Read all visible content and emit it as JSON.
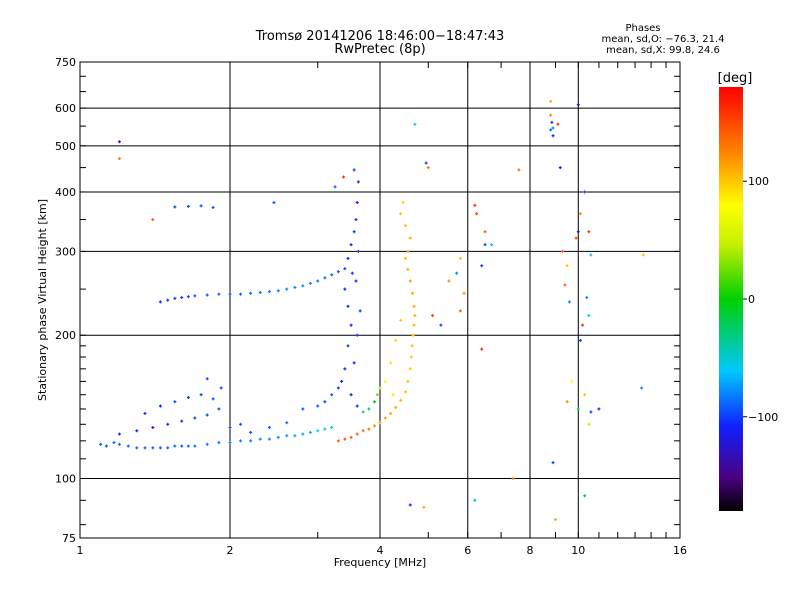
{
  "chart_data": {
    "type": "scatter",
    "title": "Tromsø 20141206 18:46:00−18:47:43",
    "subtitle": "RwPretec (8p)",
    "xlabel": "Frequency [MHz]",
    "ylabel": "Stationary phase Virtual Height [km]",
    "x_scale": "log",
    "y_scale": "log",
    "xlim": [
      1,
      16
    ],
    "ylim": [
      75,
      750
    ],
    "x_ticks": [
      1,
      2,
      4,
      6,
      8,
      10,
      16
    ],
    "x_tick_labels": [
      "1",
      "2",
      "4",
      "6",
      "8",
      "10",
      "16"
    ],
    "y_ticks": [
      75,
      100,
      200,
      300,
      400,
      500,
      600,
      750
    ],
    "y_tick_labels": [
      "75",
      "100",
      "200",
      "300",
      "400",
      "500",
      "600",
      "750"
    ],
    "grid": true,
    "phase_info": {
      "heading": "Phases",
      "line1": "mean, sd,O: −76.3, 21.4",
      "line2": "mean, sd,X:  99.8, 24.6"
    },
    "colorbar": {
      "label": "[deg]",
      "range": [
        -180,
        180
      ],
      "ticks": [
        100,
        0,
        -100
      ],
      "tick_labels": [
        "100",
        "0",
        "−100"
      ]
    },
    "series": [
      {
        "points": [
          [
            1.1,
            118,
            -95
          ],
          [
            1.13,
            117,
            -92
          ],
          [
            1.17,
            119,
            -90
          ],
          [
            1.2,
            118,
            -88
          ],
          [
            1.25,
            117,
            -90
          ],
          [
            1.3,
            116,
            -92
          ],
          [
            1.35,
            116,
            -89
          ],
          [
            1.4,
            116,
            -93
          ],
          [
            1.45,
            116,
            -91
          ],
          [
            1.5,
            116,
            -90
          ],
          [
            1.55,
            117,
            -88
          ],
          [
            1.6,
            117,
            -92
          ],
          [
            1.65,
            117,
            -89
          ],
          [
            1.7,
            117,
            -87
          ],
          [
            1.8,
            118,
            -85
          ],
          [
            1.9,
            119,
            -84
          ],
          [
            2.0,
            119,
            -83
          ],
          [
            2.1,
            120,
            -82
          ],
          [
            2.2,
            120,
            -80
          ],
          [
            2.3,
            121,
            -79
          ],
          [
            2.4,
            121,
            -78
          ],
          [
            2.5,
            122,
            -76
          ],
          [
            2.6,
            123,
            -74
          ],
          [
            2.7,
            123,
            -72
          ],
          [
            2.8,
            124,
            -70
          ],
          [
            2.9,
            125,
            -68
          ],
          [
            3.0,
            126,
            -60
          ],
          [
            3.1,
            127,
            -55
          ],
          [
            3.2,
            128,
            -50
          ],
          [
            1.2,
            124,
            -105
          ],
          [
            1.3,
            126,
            -108
          ],
          [
            1.4,
            128,
            -110
          ],
          [
            1.5,
            130,
            -106
          ],
          [
            1.6,
            132,
            -104
          ],
          [
            1.7,
            134,
            -102
          ],
          [
            1.8,
            136,
            -100
          ],
          [
            1.9,
            140,
            -98
          ],
          [
            1.55,
            145,
            -100
          ],
          [
            1.65,
            148,
            -104
          ],
          [
            1.75,
            150,
            -100
          ],
          [
            1.85,
            147,
            -96
          ],
          [
            1.45,
            142,
            -112
          ],
          [
            1.35,
            137,
            -108
          ],
          [
            2.0,
            128,
            -96
          ],
          [
            2.1,
            130,
            -95
          ],
          [
            2.2,
            125,
            -93
          ],
          [
            2.4,
            128,
            -91
          ],
          [
            2.6,
            131,
            -88
          ],
          [
            2.8,
            140,
            -95
          ],
          [
            3.0,
            142,
            -92
          ],
          [
            1.92,
            155,
            -100
          ],
          [
            1.8,
            162,
            -98
          ],
          [
            1.45,
            235,
            -105
          ],
          [
            1.5,
            237,
            -103
          ],
          [
            1.55,
            239,
            -100
          ],
          [
            1.6,
            240,
            -100
          ],
          [
            1.65,
            241,
            -98
          ],
          [
            1.7,
            242,
            -96
          ],
          [
            1.8,
            243,
            -95
          ],
          [
            1.9,
            244,
            -92
          ],
          [
            2.0,
            244,
            -92
          ],
          [
            2.1,
            244,
            -90
          ],
          [
            2.2,
            245,
            -88
          ],
          [
            2.3,
            246,
            -86
          ],
          [
            2.4,
            247,
            -84
          ],
          [
            2.5,
            248,
            -82
          ],
          [
            2.6,
            250,
            -80
          ],
          [
            2.7,
            252,
            -78
          ],
          [
            2.8,
            254,
            -78
          ],
          [
            2.9,
            257,
            -80
          ],
          [
            3.0,
            260,
            -82
          ],
          [
            3.1,
            264,
            -86
          ],
          [
            3.2,
            268,
            -90
          ],
          [
            3.3,
            272,
            -94
          ],
          [
            3.4,
            276,
            -98
          ],
          [
            1.55,
            372,
            -100
          ],
          [
            1.65,
            373,
            -98
          ],
          [
            1.75,
            374,
            -95
          ],
          [
            1.85,
            371,
            -93
          ],
          [
            2.45,
            380,
            -92
          ],
          [
            3.45,
            290,
            -105
          ],
          [
            3.5,
            310,
            -108
          ],
          [
            3.55,
            330,
            -104
          ],
          [
            3.58,
            350,
            -106
          ],
          [
            3.6,
            380,
            -110
          ],
          [
            3.62,
            420,
            -104
          ],
          [
            3.4,
            250,
            -108
          ],
          [
            3.45,
            230,
            -106
          ],
          [
            3.5,
            210,
            -110
          ],
          [
            3.45,
            190,
            -104
          ],
          [
            3.4,
            170,
            -108
          ],
          [
            3.35,
            160,
            -110
          ],
          [
            3.5,
            150,
            -112
          ],
          [
            3.6,
            142,
            -106
          ],
          [
            3.55,
            175,
            -108
          ],
          [
            3.6,
            200,
            -104
          ],
          [
            3.65,
            225,
            -100
          ],
          [
            3.62,
            300,
            -106
          ],
          [
            3.2,
            150,
            -95
          ],
          [
            3.1,
            145,
            -98
          ],
          [
            3.3,
            155,
            -102
          ],
          [
            3.58,
            260,
            -108
          ],
          [
            3.52,
            270,
            -106
          ],
          [
            3.7,
            138,
            -40
          ],
          [
            3.8,
            140,
            -20
          ],
          [
            3.9,
            145,
            0
          ],
          [
            3.95,
            150,
            20
          ],
          [
            4.0,
            155,
            40
          ],
          [
            3.3,
            120,
            140
          ],
          [
            3.4,
            121,
            145
          ],
          [
            3.5,
            122,
            140
          ],
          [
            3.6,
            124,
            138
          ],
          [
            3.7,
            126,
            132
          ],
          [
            3.8,
            127,
            128
          ],
          [
            3.9,
            129,
            122
          ],
          [
            4.0,
            131,
            118
          ],
          [
            4.1,
            134,
            114
          ],
          [
            4.2,
            137,
            110
          ],
          [
            4.3,
            141,
            108
          ],
          [
            4.4,
            146,
            106
          ],
          [
            4.5,
            152,
            104
          ],
          [
            4.55,
            160,
            102
          ],
          [
            4.6,
            170,
            100
          ],
          [
            4.62,
            180,
            102
          ],
          [
            4.64,
            190,
            104
          ],
          [
            4.66,
            200,
            100
          ],
          [
            4.68,
            210,
            104
          ],
          [
            4.7,
            220,
            108
          ],
          [
            4.68,
            230,
            110
          ],
          [
            4.65,
            245,
            112
          ],
          [
            4.6,
            260,
            116
          ],
          [
            4.55,
            275,
            110
          ],
          [
            4.5,
            290,
            106
          ],
          [
            4.55,
            300,
            114
          ],
          [
            4.6,
            320,
            110
          ],
          [
            4.5,
            340,
            100
          ],
          [
            4.4,
            360,
            102
          ],
          [
            4.45,
            380,
            96
          ],
          [
            4.2,
            175,
            90
          ],
          [
            4.3,
            195,
            94
          ],
          [
            4.4,
            215,
            98
          ],
          [
            4.1,
            160,
            80
          ],
          [
            4.25,
            150,
            60
          ],
          [
            1.2,
            510,
            -110
          ],
          [
            1.2,
            470,
            130
          ],
          [
            1.4,
            350,
            140
          ],
          [
            3.25,
            410,
            -90
          ],
          [
            3.38,
            430,
            160
          ],
          [
            3.55,
            445,
            -100
          ],
          [
            4.95,
            460,
            -100
          ],
          [
            4.7,
            555,
            -60
          ],
          [
            5.0,
            450,
            130
          ],
          [
            6.2,
            375,
            160
          ],
          [
            6.25,
            360,
            150
          ],
          [
            6.5,
            330,
            140
          ],
          [
            6.5,
            310,
            -100
          ],
          [
            6.7,
            310,
            -60
          ],
          [
            5.8,
            290,
            100
          ],
          [
            5.7,
            270,
            -80
          ],
          [
            6.4,
            280,
            -100
          ],
          [
            5.9,
            245,
            120
          ],
          [
            5.8,
            225,
            140
          ],
          [
            4.6,
            88,
            -110
          ],
          [
            4.9,
            87,
            110
          ],
          [
            6.2,
            90,
            -40
          ],
          [
            7.4,
            100,
            130
          ],
          [
            7.6,
            445,
            130
          ],
          [
            8.8,
            620,
            110
          ],
          [
            8.8,
            580,
            120
          ],
          [
            8.85,
            560,
            -100
          ],
          [
            8.9,
            545,
            -80
          ],
          [
            8.8,
            540,
            -90
          ],
          [
            8.9,
            525,
            -110
          ],
          [
            9.1,
            555,
            160
          ],
          [
            9.2,
            450,
            -110
          ],
          [
            9.3,
            300,
            140
          ],
          [
            9.4,
            255,
            140
          ],
          [
            9.6,
            235,
            -80
          ],
          [
            9.5,
            280,
            100
          ],
          [
            10.0,
            610,
            -140
          ],
          [
            10.3,
            400,
            -100
          ],
          [
            10.1,
            360,
            120
          ],
          [
            10.0,
            330,
            -120
          ],
          [
            9.9,
            320,
            150
          ],
          [
            10.5,
            330,
            160
          ],
          [
            10.6,
            295,
            -60
          ],
          [
            10.4,
            240,
            -80
          ],
          [
            10.5,
            220,
            -60
          ],
          [
            10.2,
            210,
            160
          ],
          [
            10.1,
            195,
            -100
          ],
          [
            9.5,
            145,
            120
          ],
          [
            9.7,
            160,
            80
          ],
          [
            10.0,
            140,
            -20
          ],
          [
            10.3,
            150,
            100
          ],
          [
            10.6,
            138,
            -100
          ],
          [
            10.3,
            92,
            -10
          ],
          [
            9.0,
            82,
            110
          ],
          [
            8.9,
            108,
            -100
          ],
          [
            13.5,
            295,
            100
          ],
          [
            13.4,
            155,
            -80
          ],
          [
            6.4,
            187,
            160
          ],
          [
            5.1,
            220,
            150
          ],
          [
            5.3,
            210,
            -100
          ],
          [
            5.5,
            260,
            120
          ],
          [
            10.5,
            130,
            50
          ],
          [
            11.0,
            140,
            -110
          ]
        ]
      }
    ]
  }
}
